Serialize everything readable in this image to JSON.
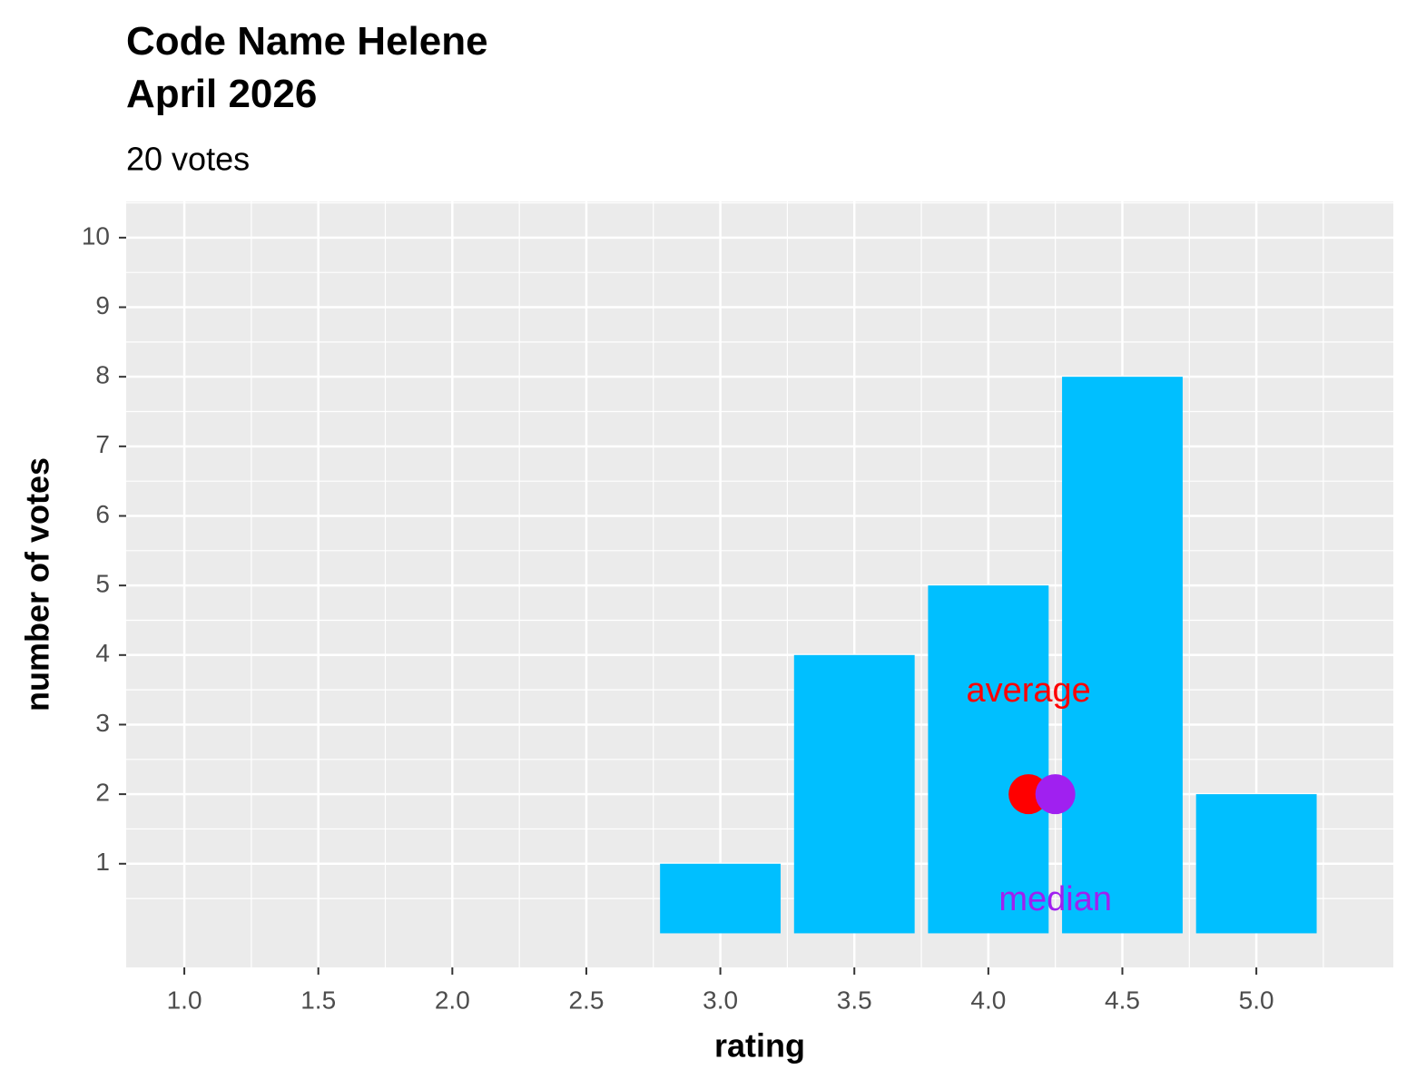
{
  "chart_data": {
    "type": "bar",
    "title": "Code Name Helene\nApril 2026",
    "subtitle": "20 votes",
    "x_label": "rating",
    "y_label": "number of votes",
    "x": [
      3.0,
      3.5,
      4.0,
      4.5,
      5.0
    ],
    "values": [
      1,
      4,
      5,
      8,
      2
    ],
    "color": "#00bfff",
    "points": [
      {
        "name": "average",
        "color": "#ff0000",
        "x": 4.15,
        "y": 2
      },
      {
        "name": "median",
        "color": "#a020f0",
        "x": 4.25,
        "y": 2
      }
    ],
    "xlim": [
      0.783,
      5.511
    ],
    "xticks": [
      {
        "value": 1,
        "label": "1.0"
      },
      1.5,
      {
        "value": 2,
        "label": "2.0"
      },
      2.5,
      {
        "value": 3,
        "label": "3.0"
      },
      3.5,
      {
        "value": 4,
        "label": "4.0"
      },
      4.5,
      {
        "value": 5,
        "label": "5.0"
      }
    ],
    "ylim": [
      -0.49,
      10.52
    ],
    "yticks": [
      1,
      2,
      3,
      4,
      5,
      6,
      7,
      8,
      9,
      10
    ],
    "grid": true
  }
}
